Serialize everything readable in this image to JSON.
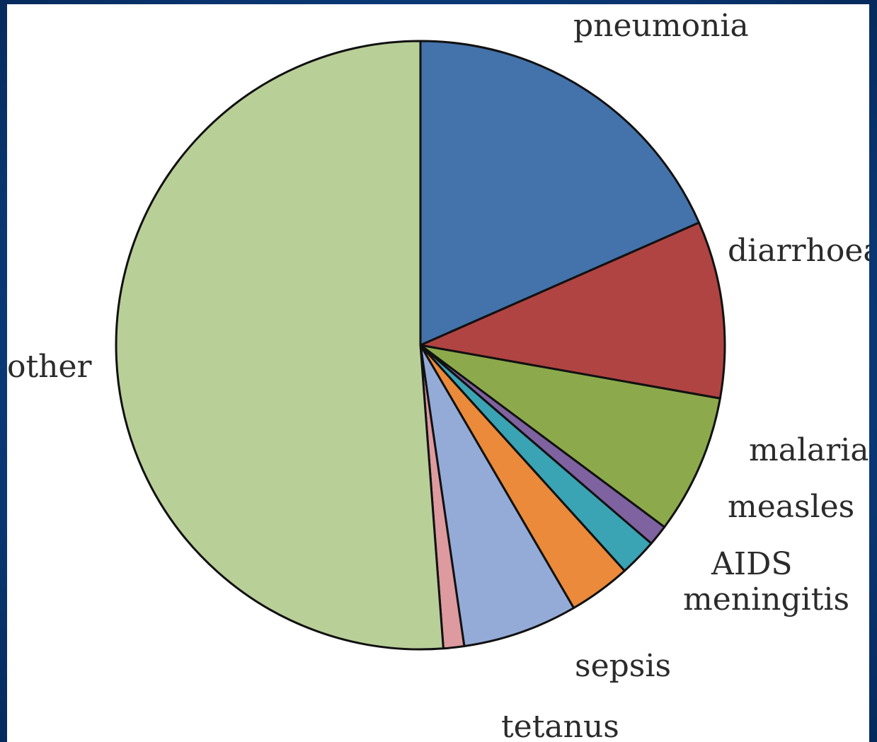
{
  "chart_data": {
    "type": "pie",
    "title": "",
    "categories": [
      "pneumonia",
      "diarrhoea",
      "malaria",
      "measles",
      "AIDS",
      "meningitis",
      "sepsis",
      "tetanus",
      "other"
    ],
    "values": [
      18.4,
      9.4,
      7.4,
      1.1,
      2.0,
      3.3,
      6.1,
      1.1,
      51.2
    ],
    "unit": "%",
    "start_angle_deg": 0,
    "direction": "clockwise",
    "colors": [
      "#4472ab",
      "#b04442",
      "#8caa4b",
      "#7f62a0",
      "#3aa3b4",
      "#ea8a3a",
      "#94abd8",
      "#dd9a9f",
      "#b9cf98"
    ],
    "legend": "none",
    "labels": {
      "pneumonia": "pneumonia",
      "diarrhoea": "diarrhoea",
      "malaria": "malaria",
      "measles": "measles",
      "AIDS": "AIDS",
      "meningitis": "meningitis",
      "sepsis": "sepsis",
      "tetanus": "tetanus",
      "other": "other"
    }
  }
}
